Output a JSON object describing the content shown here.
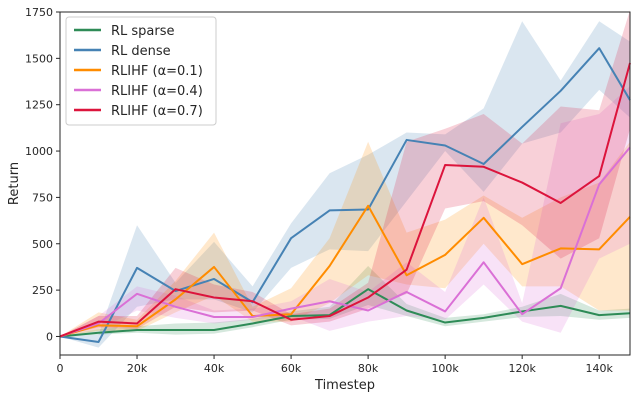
{
  "chart_data": {
    "type": "line",
    "title": "",
    "xlabel": "Timestep",
    "ylabel": "Return",
    "xlim": [
      0,
      148000
    ],
    "ylim": [
      -100,
      1750
    ],
    "xticks": [
      0,
      20000,
      40000,
      60000,
      80000,
      100000,
      120000,
      140000
    ],
    "xtick_labels": [
      "0",
      "20k",
      "40k",
      "60k",
      "80k",
      "100k",
      "120k",
      "140k"
    ],
    "yticks": [
      0,
      250,
      500,
      750,
      1000,
      1250,
      1500,
      1750
    ],
    "ytick_labels": [
      "0",
      "250",
      "500",
      "750",
      "1000",
      "1250",
      "1500",
      "1750"
    ],
    "grid": false,
    "legend_position": "top-left",
    "x": [
      0,
      10000,
      20000,
      30000,
      40000,
      50000,
      60000,
      70000,
      80000,
      90000,
      100000,
      110000,
      120000,
      130000,
      140000,
      148000
    ],
    "series": [
      {
        "name": "RL sparse",
        "color": "#2e8b57",
        "values": [
          0,
          20,
          35,
          35,
          35,
          70,
          110,
          115,
          255,
          140,
          75,
          100,
          135,
          165,
          115,
          125
        ],
        "lower": [
          0,
          10,
          20,
          10,
          15,
          50,
          90,
          95,
          170,
          110,
          55,
          80,
          105,
          110,
          90,
          100
        ],
        "upper": [
          0,
          40,
          55,
          70,
          75,
          95,
          135,
          160,
          380,
          175,
          100,
          120,
          160,
          230,
          140,
          150
        ]
      },
      {
        "name": "RL dense",
        "color": "#4682b4",
        "values": [
          0,
          -30,
          370,
          245,
          310,
          185,
          530,
          680,
          685,
          1060,
          1030,
          930,
          1130,
          1325,
          1555,
          1275
        ],
        "lower": [
          0,
          -60,
          160,
          200,
          200,
          130,
          370,
          470,
          460,
          730,
          1000,
          780,
          1040,
          1100,
          1330,
          1180
        ],
        "upper": [
          0,
          10,
          600,
          290,
          510,
          270,
          610,
          880,
          980,
          1100,
          1090,
          1230,
          1700,
          1380,
          1700,
          1590
        ]
      },
      {
        "name": "RLIHF (α=0.1)",
        "color": "#ff8c00",
        "values": [
          0,
          60,
          55,
          200,
          375,
          110,
          120,
          380,
          705,
          330,
          440,
          640,
          390,
          475,
          470,
          645
        ],
        "lower": [
          0,
          30,
          30,
          130,
          220,
          80,
          80,
          180,
          330,
          280,
          260,
          500,
          270,
          270,
          140,
          140
        ],
        "upper": [
          0,
          130,
          90,
          300,
          560,
          160,
          260,
          530,
          1050,
          560,
          630,
          760,
          640,
          750,
          830,
          1050
        ]
      },
      {
        "name": "RLIHF (α=0.4)",
        "color": "#da70d6",
        "values": [
          0,
          70,
          230,
          160,
          105,
          105,
          150,
          190,
          140,
          240,
          135,
          400,
          120,
          260,
          820,
          1020
        ],
        "lower": [
          0,
          40,
          140,
          100,
          70,
          90,
          110,
          30,
          80,
          110,
          90,
          280,
          80,
          20,
          420,
          500
        ],
        "upper": [
          0,
          110,
          270,
          220,
          140,
          150,
          190,
          310,
          240,
          400,
          240,
          750,
          180,
          1150,
          1200,
          1350
        ]
      },
      {
        "name": "RLIHF (α=0.7)",
        "color": "#dc143c",
        "values": [
          0,
          80,
          70,
          255,
          210,
          190,
          90,
          110,
          210,
          360,
          925,
          915,
          830,
          720,
          865,
          1475
        ],
        "lower": [
          0,
          50,
          40,
          160,
          130,
          140,
          60,
          80,
          150,
          230,
          690,
          730,
          600,
          420,
          530,
          1120
        ],
        "upper": [
          0,
          110,
          110,
          370,
          280,
          240,
          120,
          150,
          290,
          1050,
          1120,
          1200,
          1040,
          1240,
          1220,
          1760
        ]
      }
    ]
  }
}
